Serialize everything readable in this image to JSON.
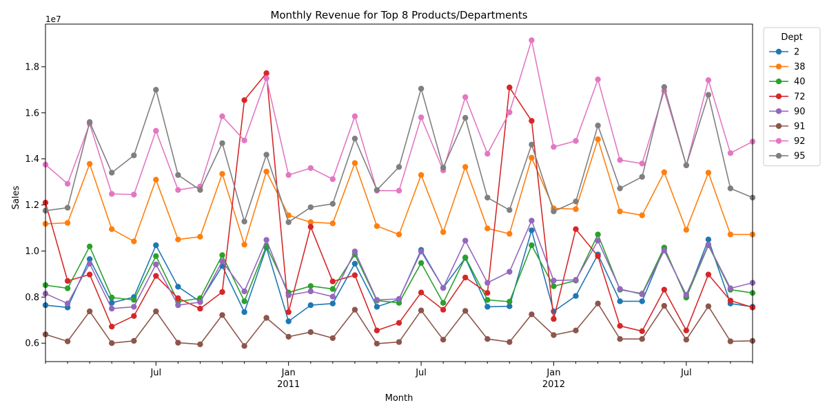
{
  "chart_data": {
    "type": "line",
    "title": "Monthly Revenue for Top 8 Products/Departments",
    "xlabel": "Month",
    "ylabel": "Sales",
    "y_multiplier_label": "1e7",
    "y_scale": 10000000,
    "ylim": [
      5.2,
      19.85
    ],
    "y_ticks": [
      6.0,
      8.0,
      10.0,
      12.0,
      14.0,
      16.0,
      18.0
    ],
    "y_tick_labels": [
      "0.6",
      "0.8",
      "1.0",
      "1.2",
      "1.4",
      "1.6",
      "1.8"
    ],
    "x": [
      "2010-02",
      "2010-03",
      "2010-04",
      "2010-05",
      "2010-06",
      "2010-07",
      "2010-08",
      "2010-09",
      "2010-10",
      "2010-11",
      "2010-12",
      "2011-01",
      "2011-02",
      "2011-03",
      "2011-04",
      "2011-05",
      "2011-06",
      "2011-07",
      "2011-08",
      "2011-09",
      "2011-10",
      "2011-11",
      "2011-12",
      "2012-01",
      "2012-02",
      "2012-03",
      "2012-04",
      "2012-05",
      "2012-06",
      "2012-07",
      "2012-08",
      "2012-09",
      "2012-10"
    ],
    "x_ticks": [
      {
        "month": "2010-07",
        "label": "Jul",
        "year_label": ""
      },
      {
        "month": "2011-01",
        "label": "Jan",
        "year_label": "2011"
      },
      {
        "month": "2011-07",
        "label": "Jul",
        "year_label": ""
      },
      {
        "month": "2012-01",
        "label": "Jan",
        "year_label": "2012"
      },
      {
        "month": "2012-07",
        "label": "Jul",
        "year_label": ""
      }
    ],
    "x_minor_ticks": [
      "2010-02",
      "2010-03",
      "2010-04",
      "2010-05",
      "2010-06",
      "2010-08",
      "2010-09",
      "2010-10",
      "2010-11",
      "2010-12",
      "2011-02",
      "2011-03",
      "2011-04",
      "2011-05",
      "2011-06",
      "2011-08",
      "2011-09",
      "2011-10",
      "2011-11",
      "2011-12",
      "2012-02",
      "2012-03",
      "2012-04",
      "2012-05",
      "2012-06",
      "2012-08",
      "2012-09",
      "2012-10"
    ],
    "grid": false,
    "legend": {
      "title": "Dept",
      "placement": "outside-top-right"
    },
    "series": [
      {
        "name": "2",
        "color": "#1f77b4",
        "values": [
          7.65,
          7.55,
          9.65,
          7.75,
          8.0,
          10.25,
          8.45,
          7.8,
          9.35,
          7.35,
          10.15,
          6.95,
          7.65,
          7.72,
          9.45,
          7.58,
          7.9,
          10.05,
          8.4,
          9.7,
          7.58,
          7.6,
          10.9,
          7.38,
          8.05,
          9.85,
          7.82,
          7.82,
          10.12,
          8.0,
          10.5,
          7.72,
          7.58
        ]
      },
      {
        "name": "38",
        "color": "#ff7f0e",
        "values": [
          11.18,
          11.22,
          13.78,
          10.95,
          10.42,
          13.1,
          10.5,
          10.62,
          13.35,
          10.28,
          13.45,
          11.55,
          11.25,
          11.2,
          13.82,
          11.08,
          10.72,
          13.3,
          10.82,
          13.65,
          10.98,
          10.75,
          14.05,
          11.85,
          11.82,
          14.85,
          11.72,
          11.55,
          13.42,
          10.92,
          13.4,
          10.72,
          10.72
        ]
      },
      {
        "name": "40",
        "color": "#2ca02c",
        "values": [
          8.52,
          8.38,
          10.2,
          7.98,
          7.88,
          9.78,
          7.8,
          7.95,
          9.82,
          7.82,
          10.22,
          8.2,
          8.48,
          8.35,
          9.85,
          7.85,
          7.75,
          9.48,
          7.75,
          9.72,
          7.88,
          7.8,
          10.25,
          8.47,
          8.72,
          10.72,
          8.32,
          8.15,
          10.15,
          7.98,
          10.25,
          8.32,
          8.18
        ]
      },
      {
        "name": "72",
        "color": "#d62728",
        "values": [
          12.1,
          8.7,
          8.98,
          6.72,
          7.18,
          8.92,
          7.95,
          7.5,
          8.22,
          16.55,
          17.72,
          7.35,
          11.05,
          8.68,
          8.95,
          6.55,
          6.88,
          8.2,
          7.45,
          8.85,
          8.18,
          17.1,
          15.65,
          7.05,
          10.95,
          9.78,
          6.75,
          6.52,
          8.32,
          6.55,
          8.98,
          7.85,
          7.55
        ]
      },
      {
        "name": "90",
        "color": "#9467bd",
        "values": [
          8.15,
          7.72,
          9.45,
          7.5,
          7.58,
          9.42,
          7.65,
          7.78,
          9.55,
          8.25,
          10.48,
          8.08,
          8.25,
          8.02,
          9.98,
          7.88,
          7.92,
          9.98,
          8.4,
          10.45,
          8.62,
          9.1,
          11.32,
          8.72,
          8.75,
          10.45,
          8.35,
          8.12,
          10.02,
          8.1,
          10.28,
          8.38,
          8.62
        ]
      },
      {
        "name": "91",
        "color": "#8c564b",
        "values": [
          6.38,
          6.08,
          7.38,
          6.0,
          6.1,
          7.38,
          6.02,
          5.95,
          7.22,
          5.88,
          7.1,
          6.28,
          6.48,
          6.22,
          7.45,
          5.98,
          6.05,
          7.42,
          6.15,
          7.4,
          6.18,
          6.05,
          7.25,
          6.35,
          6.55,
          7.72,
          6.18,
          6.18,
          7.62,
          6.15,
          7.6,
          6.08,
          6.1
        ]
      },
      {
        "name": "92",
        "color": "#e377c2",
        "values": [
          13.75,
          12.92,
          15.52,
          12.48,
          12.45,
          15.22,
          12.65,
          12.8,
          15.85,
          14.8,
          17.5,
          13.3,
          13.6,
          13.12,
          15.85,
          12.62,
          12.62,
          15.8,
          13.5,
          16.68,
          14.22,
          16.02,
          19.15,
          14.52,
          14.78,
          17.45,
          13.95,
          13.8,
          16.95,
          13.72,
          17.42,
          14.25,
          14.75
        ]
      },
      {
        "name": "95",
        "color": "#7f7f7f",
        "values": [
          11.75,
          11.88,
          15.6,
          13.4,
          14.15,
          17.0,
          13.3,
          12.65,
          14.68,
          11.28,
          14.18,
          11.25,
          11.9,
          12.05,
          14.88,
          12.65,
          13.65,
          17.05,
          13.62,
          15.78,
          12.32,
          11.78,
          14.62,
          11.72,
          12.15,
          15.45,
          12.72,
          13.22,
          17.12,
          13.72,
          16.78,
          12.72,
          12.32
        ]
      }
    ]
  }
}
